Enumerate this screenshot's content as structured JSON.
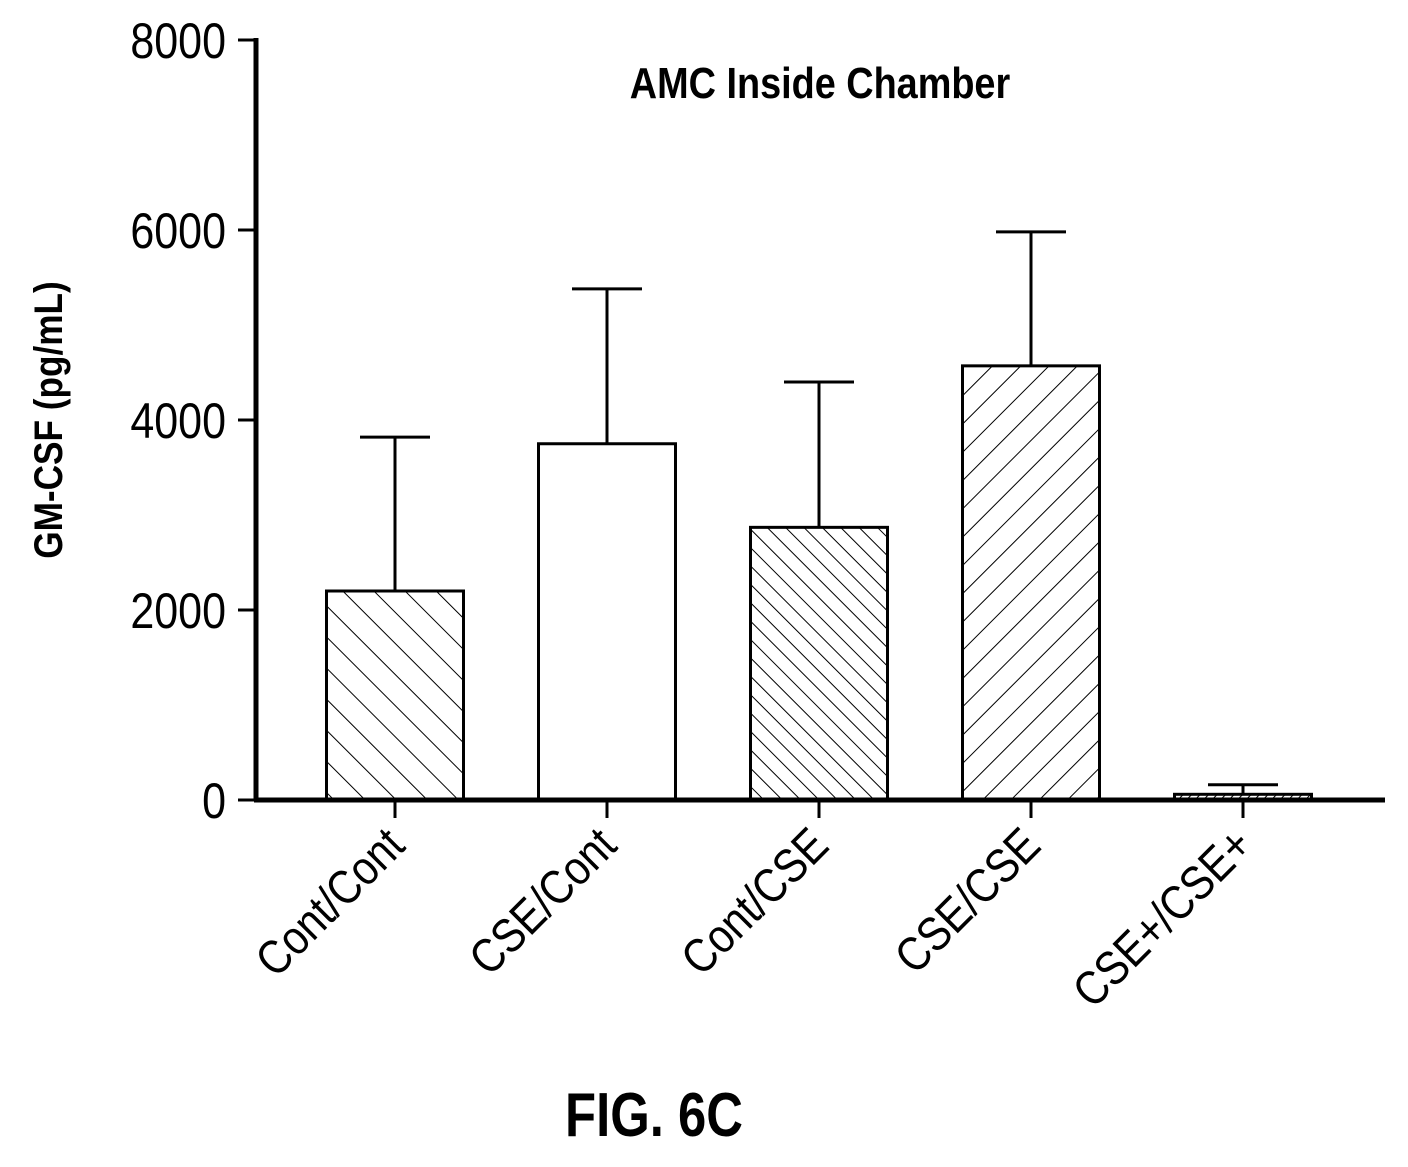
{
  "figure_label": "FIG. 6C",
  "chart_data": {
    "type": "bar",
    "title": "AMC Inside Chamber",
    "xlabel": "",
    "ylabel": "GM-CSF (pg/mL)",
    "ylim": [
      0,
      8000
    ],
    "yticks": [
      0,
      2000,
      4000,
      6000,
      8000
    ],
    "grid": false,
    "legend": "none",
    "categories": [
      "Cont/Cont",
      "CSE/Cont",
      "Cont/CSE",
      "CSE/CSE",
      "CSE+/CSE+"
    ],
    "values": [
      2200,
      3750,
      2870,
      4570,
      60
    ],
    "error_upper": [
      3820,
      5380,
      4400,
      5980,
      160
    ],
    "fill_patterns": [
      "hatch-backslash",
      "none",
      "hatch-backslash-dense",
      "hatch-slash",
      "hatch-dense"
    ],
    "colors": {
      "bar_stroke": "#000000",
      "bar_fill": "#ffffff",
      "axis": "#000000"
    }
  }
}
